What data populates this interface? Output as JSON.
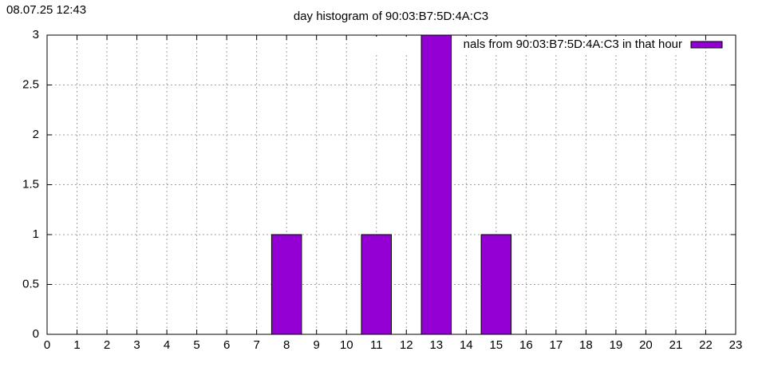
{
  "timestamp": "08.07.25 12:43",
  "chart_data": {
    "type": "histogram",
    "title": "day histogram of 90:03:B7:5D:4A:C3",
    "x": [
      8,
      11,
      13,
      15
    ],
    "values": [
      1,
      1,
      3,
      1
    ],
    "series_name": "nals from 90:03:B7:5D:4A:C3 in that hour",
    "color": "#9400d3",
    "xlim": [
      0,
      23
    ],
    "xticks": [
      0,
      1,
      2,
      3,
      4,
      5,
      6,
      7,
      8,
      9,
      10,
      11,
      12,
      13,
      14,
      15,
      16,
      17,
      18,
      19,
      20,
      21,
      22,
      23
    ],
    "ylim": [
      0,
      3
    ],
    "yticks": [
      0,
      0.5,
      1,
      1.5,
      2,
      2.5,
      3
    ],
    "grid": true,
    "legend": "top-right"
  }
}
